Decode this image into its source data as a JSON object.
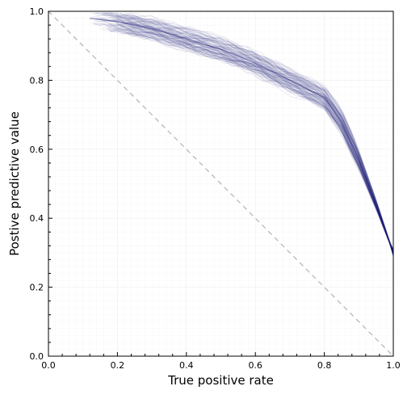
{
  "chart_data": {
    "type": "line",
    "title": "",
    "xlabel": "True positive rate",
    "ylabel": "Postive predictive value",
    "xlim": [
      0,
      1
    ],
    "ylim": [
      0,
      1
    ],
    "xticks": [
      "0.0",
      "0.2",
      "0.4",
      "0.6",
      "0.8",
      "1.0"
    ],
    "yticks": [
      "0.0",
      "0.2",
      "0.4",
      "0.6",
      "0.8",
      "1.0"
    ],
    "grid": true,
    "minor_grid": true,
    "legend": "none",
    "series_color": "#1f1f7a",
    "reference_line": {
      "x": [
        0,
        1
      ],
      "y": [
        1,
        0
      ],
      "style": "dashed",
      "color": "#b8b8b8"
    },
    "n_curves": 100,
    "series": [
      {
        "x": [
          0.12,
          0.2,
          0.3,
          0.4,
          0.5,
          0.6,
          0.7,
          0.8,
          0.85,
          0.9,
          0.95,
          1.0
        ],
        "y": [
          0.98,
          0.97,
          0.95,
          0.92,
          0.89,
          0.85,
          0.8,
          0.75,
          0.68,
          0.57,
          0.44,
          0.3
        ]
      }
    ]
  }
}
